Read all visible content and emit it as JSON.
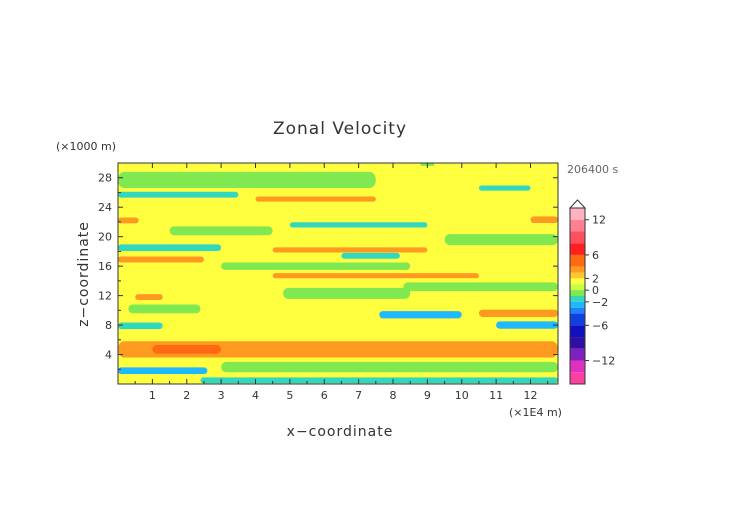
{
  "chart_data": {
    "type": "heatmap",
    "title": "Zonal Velocity",
    "xlabel": "x−coordinate",
    "ylabel": "z−coordinate",
    "x_unit": "(×1E4 m)",
    "y_unit": "(×1000 m)",
    "time_label": "206400 s",
    "xlim": [
      0,
      12.8
    ],
    "ylim": [
      0,
      30
    ],
    "x_ticks": [
      "1",
      "2",
      "3",
      "4",
      "5",
      "6",
      "7",
      "8",
      "9",
      "10",
      "11",
      "12"
    ],
    "y_ticks": [
      "4",
      "8",
      "12",
      "16",
      "20",
      "24",
      "28"
    ],
    "colorbar": {
      "levels": [
        {
          "from": 12,
          "to": 14,
          "color": "#ffb3c0"
        },
        {
          "from": 10,
          "to": 12,
          "color": "#ff8090"
        },
        {
          "from": 8,
          "to": 10,
          "color": "#ff5060"
        },
        {
          "from": 6,
          "to": 8,
          "color": "#ff2020"
        },
        {
          "from": 4,
          "to": 6,
          "color": "#ff6a10"
        },
        {
          "from": 3,
          "to": 4,
          "color": "#ff9a20"
        },
        {
          "from": 2,
          "to": 3,
          "color": "#ffc830"
        },
        {
          "from": 1,
          "to": 2,
          "color": "#ffff40"
        },
        {
          "from": 0,
          "to": 1,
          "color": "#c8ff40"
        },
        {
          "from": -1,
          "to": 0,
          "color": "#80e850"
        },
        {
          "from": -2,
          "to": -1,
          "color": "#30d8c0"
        },
        {
          "from": -3,
          "to": -2,
          "color": "#20b8ff"
        },
        {
          "from": -4,
          "to": -3,
          "color": "#2080ff"
        },
        {
          "from": -6,
          "to": -4,
          "color": "#1040e0"
        },
        {
          "from": -8,
          "to": -6,
          "color": "#1010c0"
        },
        {
          "from": -10,
          "to": -8,
          "color": "#3010a0"
        },
        {
          "from": -12,
          "to": -10,
          "color": "#8020c0"
        },
        {
          "from": -14,
          "to": -12,
          "color": "#e030c0"
        },
        {
          "from": -16,
          "to": -14,
          "color": "#ff40a0"
        }
      ],
      "tick_labels": [
        "12",
        "6",
        "2",
        "0",
        "−2",
        "−6",
        "−12"
      ],
      "tick_values": [
        12,
        6,
        2,
        0,
        -2,
        -6,
        -12
      ],
      "max": 14,
      "min": -16
    },
    "bands": [
      {
        "z": 1.8,
        "x0": 0.0,
        "x1": 2.6,
        "value": -2.5,
        "thick": 0.9
      },
      {
        "z": 0.5,
        "x0": 2.4,
        "x1": 12.8,
        "value": -1.5,
        "thick": 0.8
      },
      {
        "z": 2.3,
        "x0": 3.0,
        "x1": 12.8,
        "value": -0.5,
        "thick": 1.4
      },
      {
        "z": 4.7,
        "x0": 0.0,
        "x1": 12.8,
        "value": 3.5,
        "thick": 2.2
      },
      {
        "z": 4.7,
        "x0": 1.0,
        "x1": 3.0,
        "value": 4.5,
        "thick": 1.2
      },
      {
        "z": 6.5,
        "x0": 0.0,
        "x1": 3.5,
        "value": 1.5,
        "thick": 1.0
      },
      {
        "z": 7.2,
        "x0": 4.0,
        "x1": 10.0,
        "value": 1.5,
        "thick": 1.6
      },
      {
        "z": 7.9,
        "x0": 0.0,
        "x1": 1.3,
        "value": -1.5,
        "thick": 0.9
      },
      {
        "z": 8.0,
        "x0": 11.0,
        "x1": 12.8,
        "value": -2.5,
        "thick": 1.0
      },
      {
        "z": 9.4,
        "x0": 7.6,
        "x1": 10.0,
        "value": -2.5,
        "thick": 1.0
      },
      {
        "z": 9.6,
        "x0": 10.5,
        "x1": 12.8,
        "value": 3.5,
        "thick": 1.0
      },
      {
        "z": 10.2,
        "x0": 0.3,
        "x1": 2.4,
        "value": -0.5,
        "thick": 1.2
      },
      {
        "z": 11.8,
        "x0": 0.5,
        "x1": 1.3,
        "value": 3.5,
        "thick": 0.8
      },
      {
        "z": 12.3,
        "x0": 4.8,
        "x1": 8.5,
        "value": -0.5,
        "thick": 1.5
      },
      {
        "z": 13.2,
        "x0": 8.3,
        "x1": 12.8,
        "value": -0.5,
        "thick": 1.2
      },
      {
        "z": 14.5,
        "x0": 0.0,
        "x1": 1.8,
        "value": 1.5,
        "thick": 1.6
      },
      {
        "z": 14.7,
        "x0": 4.5,
        "x1": 10.5,
        "value": 3.5,
        "thick": 0.7
      },
      {
        "z": 16.0,
        "x0": 3.0,
        "x1": 8.5,
        "value": -0.5,
        "thick": 1.0
      },
      {
        "z": 16.9,
        "x0": 0.0,
        "x1": 2.5,
        "value": 3.5,
        "thick": 0.8
      },
      {
        "z": 17.4,
        "x0": 6.5,
        "x1": 8.2,
        "value": -1.5,
        "thick": 0.8
      },
      {
        "z": 18.2,
        "x0": 4.5,
        "x1": 9.0,
        "value": 3.5,
        "thick": 0.7
      },
      {
        "z": 18.5,
        "x0": 0.0,
        "x1": 3.0,
        "value": -1.5,
        "thick": 0.9
      },
      {
        "z": 19.6,
        "x0": 9.5,
        "x1": 12.8,
        "value": -0.5,
        "thick": 1.5
      },
      {
        "z": 20.8,
        "x0": 1.5,
        "x1": 4.5,
        "value": -0.5,
        "thick": 1.2
      },
      {
        "z": 21.6,
        "x0": 5.0,
        "x1": 9.0,
        "value": -1.5,
        "thick": 0.7
      },
      {
        "z": 22.2,
        "x0": 0.0,
        "x1": 0.6,
        "value": 3.5,
        "thick": 0.8
      },
      {
        "z": 22.3,
        "x0": 12.0,
        "x1": 12.8,
        "value": 3.5,
        "thick": 0.9
      },
      {
        "z": 23.5,
        "x0": 3.8,
        "x1": 9.5,
        "value": 1.5,
        "thick": 1.6
      },
      {
        "z": 25.1,
        "x0": 4.0,
        "x1": 7.5,
        "value": 3.5,
        "thick": 0.7
      },
      {
        "z": 25.7,
        "x0": 0.0,
        "x1": 3.5,
        "value": -1.5,
        "thick": 0.8
      },
      {
        "z": 26.2,
        "x0": 8.5,
        "x1": 12.8,
        "value": 1.5,
        "thick": 1.4
      },
      {
        "z": 26.6,
        "x0": 10.5,
        "x1": 12.0,
        "value": -1.5,
        "thick": 0.7
      },
      {
        "z": 27.7,
        "x0": 0.0,
        "x1": 7.5,
        "value": -0.5,
        "thick": 2.2
      },
      {
        "z": 28.0,
        "x0": 7.5,
        "x1": 10.2,
        "value": 1.5,
        "thick": 1.2
      },
      {
        "z": 29.8,
        "x0": 8.8,
        "x1": 9.2,
        "value": -0.5,
        "thick": 0.4
      }
    ]
  }
}
